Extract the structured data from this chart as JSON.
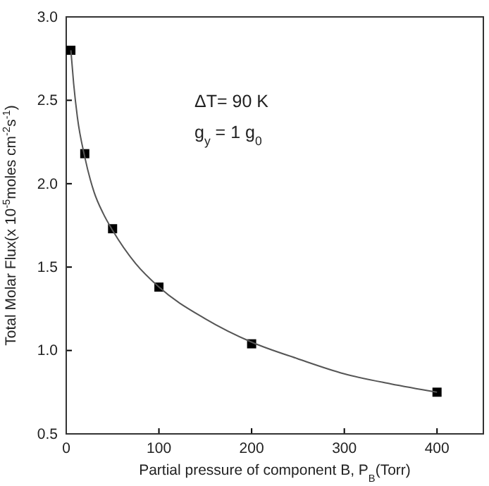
{
  "chart_data": {
    "type": "scatter",
    "xlabel": "Partial pressure of component B, P$_{B}$(Torr)",
    "ylabel": "Total Molar Flux(x 10$^{-5}$moles cm$^{-2}$s$^{-1}$)",
    "annotations": [
      "ΔT= 90 K",
      "g$_{y}$ = 1 g$_{0}$"
    ],
    "xlim": [
      0,
      450
    ],
    "xticks": [
      0,
      100,
      200,
      300,
      400
    ],
    "ylim": [
      0.5,
      3.0
    ],
    "yticks": [
      {
        "value": 0.5,
        "label": "0.5"
      },
      {
        "value": 1,
        "label": "1.0"
      },
      {
        "value": 1.5,
        "label": "1.5"
      },
      {
        "value": 2,
        "label": "2.0"
      },
      {
        "value": 2.5,
        "label": "2.5"
      },
      {
        "value": 3,
        "label": "3.0"
      }
    ],
    "grid": false,
    "series": [
      {
        "marker": "square",
        "color": "#000000",
        "x": [
          5,
          20,
          50,
          100,
          200,
          400
        ],
        "values": [
          2.8,
          2.18,
          1.73,
          1.38,
          1.04,
          0.75
        ]
      },
      {
        "type": "line",
        "marker": "none",
        "line_style": "solid",
        "color": "#555555",
        "x": [
          5,
          8,
          12,
          20,
          30,
          40,
          50,
          75,
          100,
          150,
          200,
          250,
          300,
          350,
          400
        ],
        "values": [
          2.8,
          2.6,
          2.4,
          2.16,
          1.95,
          1.82,
          1.72,
          1.52,
          1.38,
          1.19,
          1.05,
          0.95,
          0.86,
          0.8,
          0.75
        ]
      }
    ]
  }
}
